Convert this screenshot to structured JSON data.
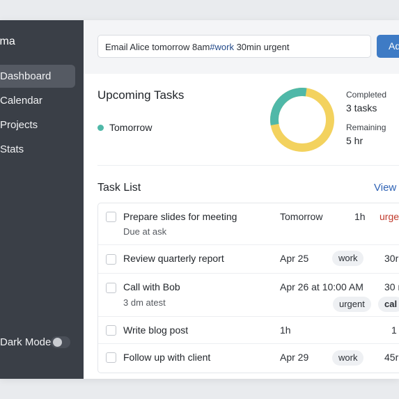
{
  "app": {
    "brand": "ima"
  },
  "sidebar": {
    "items": [
      {
        "label": "Dashboard",
        "active": true
      },
      {
        "label": "Calendar",
        "active": false
      },
      {
        "label": "Projects",
        "active": false
      },
      {
        "label": "Stats",
        "active": false
      }
    ],
    "dark_mode_label": "Dark Mode",
    "dark_mode_on": false
  },
  "quick_add": {
    "value_prefix": "Email Alice tomorrow 8am",
    "value_tag": "#work",
    "value_suffix": " 30min urgent",
    "button_label": "Ad"
  },
  "upcoming": {
    "title": "Upcoming Tasks",
    "legend_label": "Tomorrow",
    "completed_label": "Completed",
    "completed_value": "3 tasks",
    "remaining_label": "Remaining",
    "remaining_value": "5 hr",
    "donut_completed_fraction": 0.3,
    "colors": {
      "completed": "#4fb8a8",
      "remaining": "#f3d25e"
    }
  },
  "task_list": {
    "title": "Task List",
    "view_link": "View",
    "rows": [
      {
        "title": "Prepare slides for meeting",
        "sub": "Due at ask",
        "due": "Tomorrow",
        "duration": "1h",
        "priority": "urge",
        "priority_color": "#c0392b"
      },
      {
        "title": "Review quarterly report",
        "due": "Apr 25",
        "tag": "work",
        "duration": "30r"
      },
      {
        "title": "Call with Bob",
        "sub": "3 dm atest",
        "due": "Apr 26 at 10:00 AM",
        "duration": "30 r",
        "tag": "urgent",
        "tag2": "cal"
      },
      {
        "title": "Write blog post",
        "due": "1h",
        "duration": "1"
      },
      {
        "title": "Follow up with client",
        "due": "Apr 29",
        "tag": "work",
        "duration": "45r"
      }
    ]
  }
}
